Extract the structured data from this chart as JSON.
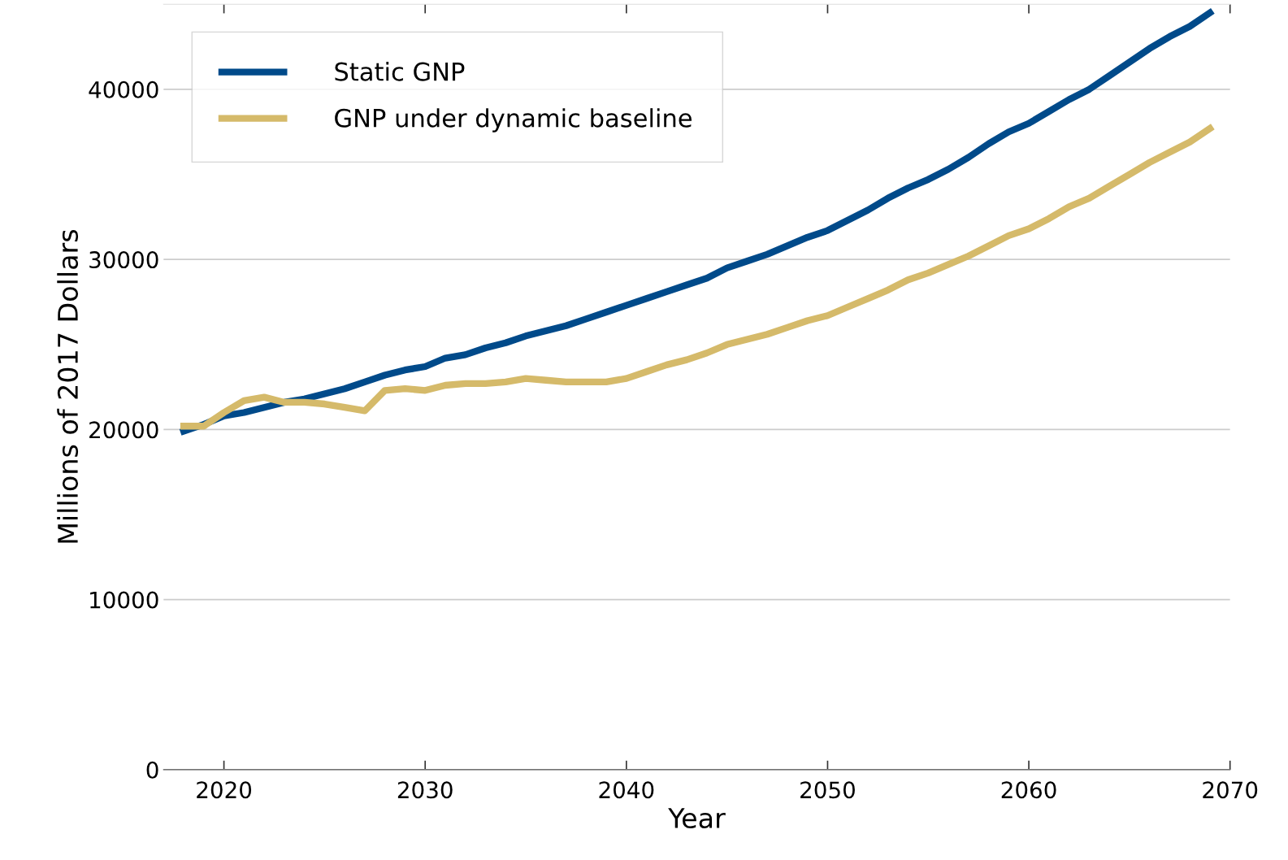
{
  "chart_data": {
    "type": "line",
    "xlabel": "Year",
    "ylabel": "Millions of 2017 Dollars",
    "x": [
      2018,
      2019,
      2020,
      2021,
      2022,
      2023,
      2024,
      2025,
      2026,
      2027,
      2028,
      2029,
      2030,
      2031,
      2032,
      2033,
      2034,
      2035,
      2036,
      2037,
      2038,
      2039,
      2040,
      2041,
      2042,
      2043,
      2044,
      2045,
      2046,
      2047,
      2048,
      2049,
      2050,
      2051,
      2052,
      2053,
      2054,
      2055,
      2056,
      2057,
      2058,
      2059,
      2060,
      2061,
      2062,
      2063,
      2064,
      2065,
      2066,
      2067,
      2068,
      2069
    ],
    "series": [
      {
        "name": "Static GNP",
        "color": "#004a8a",
        "values": [
          19900,
          20300,
          20800,
          21000,
          21300,
          21600,
          21800,
          22100,
          22400,
          22800,
          23200,
          23500,
          23700,
          24200,
          24400,
          24800,
          25100,
          25500,
          25800,
          26100,
          26500,
          26900,
          27300,
          27700,
          28100,
          28500,
          28900,
          29500,
          29900,
          30300,
          30800,
          31300,
          31700,
          32300,
          32900,
          33600,
          34200,
          34700,
          35300,
          36000,
          36800,
          37500,
          38000,
          38700,
          39400,
          40000,
          40800,
          41600,
          42400,
          43100,
          43700,
          44500
        ]
      },
      {
        "name": "GNP under dynamic baseline",
        "color": "#d5ba6a",
        "values": [
          20200,
          20200,
          21000,
          21700,
          21900,
          21600,
          21600,
          21500,
          21300,
          21100,
          22300,
          22400,
          22300,
          22600,
          22700,
          22700,
          22800,
          23000,
          22900,
          22800,
          22800,
          22800,
          23000,
          23400,
          23800,
          24100,
          24500,
          25000,
          25300,
          25600,
          26000,
          26400,
          26700,
          27200,
          27700,
          28200,
          28800,
          29200,
          29700,
          30200,
          30800,
          31400,
          31800,
          32400,
          33100,
          33600,
          34300,
          35000,
          35700,
          36300,
          36900,
          37700
        ]
      }
    ],
    "xlim": [
      2017,
      2070
    ],
    "xticks": [
      2020,
      2030,
      2040,
      2050,
      2060,
      2070
    ],
    "ylim": [
      0,
      45000
    ],
    "yticks": [
      0,
      10000,
      20000,
      30000,
      40000
    ],
    "grid": "y",
    "legend": "top left",
    "line_style": "solid",
    "marker": "none"
  }
}
